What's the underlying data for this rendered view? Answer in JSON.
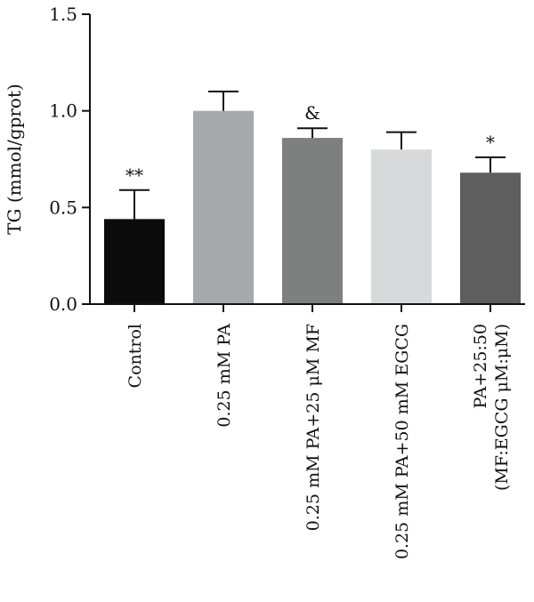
{
  "chart_data": {
    "type": "bar",
    "ylabel": "TG (mmol/gprot)",
    "xlabel": "",
    "ylim": [
      0,
      1.5
    ],
    "yticks": [
      "0.0",
      "0.5",
      "1.0",
      "1.5"
    ],
    "categories": [
      [
        "Control"
      ],
      [
        "0.25 mM PA"
      ],
      [
        "0.25 mM PA+25 μM MF"
      ],
      [
        "0.25 mM PA+50 mM EGCG"
      ],
      [
        "PA+25:50",
        "(MF:EGCG μM:μM)"
      ]
    ],
    "values": [
      0.44,
      1.0,
      0.86,
      0.8,
      0.68
    ],
    "errors": [
      0.15,
      0.1,
      0.05,
      0.09,
      0.08
    ],
    "annotations": [
      "**",
      "",
      "&",
      "",
      "*"
    ],
    "colors": [
      "#0b0b0b",
      "#a6a8ab",
      "#7e807f",
      "#d8d9da",
      "#5e5e5f"
    ],
    "grid": false,
    "legend": "none"
  }
}
